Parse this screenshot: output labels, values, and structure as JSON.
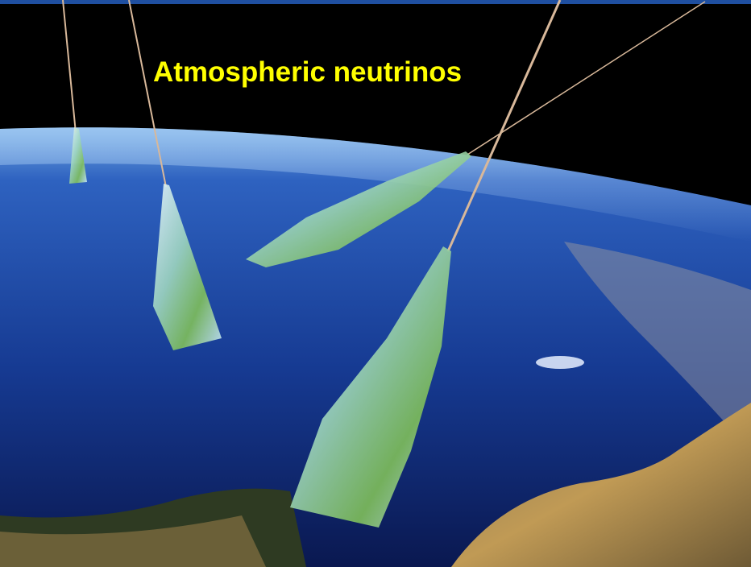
{
  "title": "Atmospheric neutrinos"
}
